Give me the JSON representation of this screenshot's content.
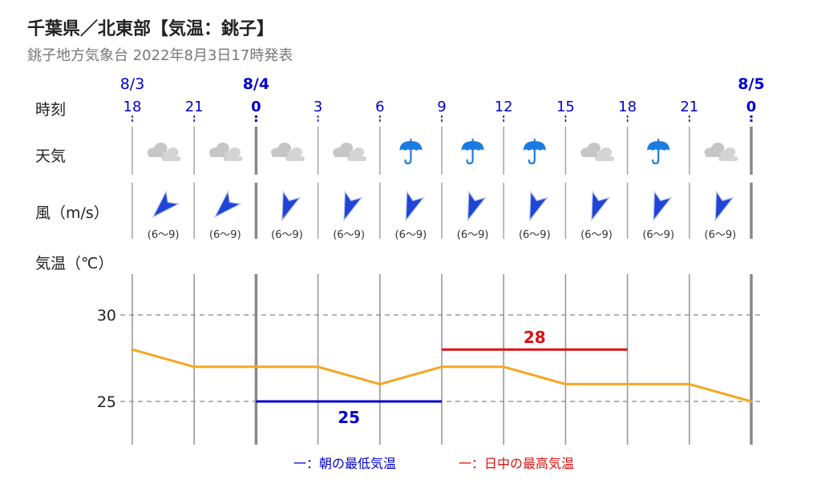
{
  "title": "千葉県／北東部【気温：銚子】",
  "subtitle": "銚子地方気象台 2022年8月3日17時発表",
  "row_labels": {
    "time": "時刻",
    "weather": "天気",
    "wind": "風（m/s）",
    "temp": "気温（℃）"
  },
  "chart_data": {
    "type": "line",
    "date_labels": [
      {
        "date": "8/3",
        "at_hour": "18",
        "bold": false
      },
      {
        "date": "8/4",
        "at_hour": "0",
        "bold": true
      },
      {
        "date": "8/5",
        "at_hour": "0",
        "bold": true
      }
    ],
    "hours": [
      "18",
      "21",
      "0",
      "3",
      "6",
      "9",
      "12",
      "15",
      "18",
      "21",
      "0"
    ],
    "day_boundaries_at_hour_index": [
      2,
      10
    ],
    "weather": [
      "cloudy",
      "cloudy",
      "cloudy",
      "cloudy",
      "rain",
      "rain",
      "rain",
      "cloudy",
      "rain",
      "cloudy"
    ],
    "wind": {
      "direction": [
        "NE",
        "NE",
        "N",
        "N",
        "N",
        "N",
        "N",
        "N",
        "N",
        "N"
      ],
      "speed_label": [
        "(6～9)",
        "(6～9)",
        "(6～9)",
        "(6～9)",
        "(6～9)",
        "(6～9)",
        "(6～9)",
        "(6～9)",
        "(6～9)",
        "(6～9)"
      ]
    },
    "temperature": {
      "values": [
        28,
        27,
        27,
        27,
        26,
        27,
        27,
        26,
        26,
        26,
        25
      ],
      "color": "#f5a623"
    },
    "ylim": [
      22.5,
      32.5
    ],
    "yticks": [
      25,
      30
    ],
    "grid": "dashed horizontal at ticks",
    "min_temp": {
      "value": 25,
      "label": "25",
      "from_index": 2,
      "to_index": 5,
      "color": "#0000cc"
    },
    "max_temp": {
      "value": 28,
      "label": "28",
      "from_index": 5,
      "to_index": 8,
      "color": "#dd1111"
    },
    "legend": {
      "min_label": "一：朝の最低気温",
      "max_label": "一：日中の最高気温",
      "min_color": "#0000cc",
      "max_color": "#dd1111"
    },
    "colors": {
      "axis_blue": "#0000cc",
      "grid_gray": "#888888",
      "cloud": "#c6c6c6",
      "umbrella": "#1a7be0",
      "arrow": "#1f45d8"
    }
  }
}
